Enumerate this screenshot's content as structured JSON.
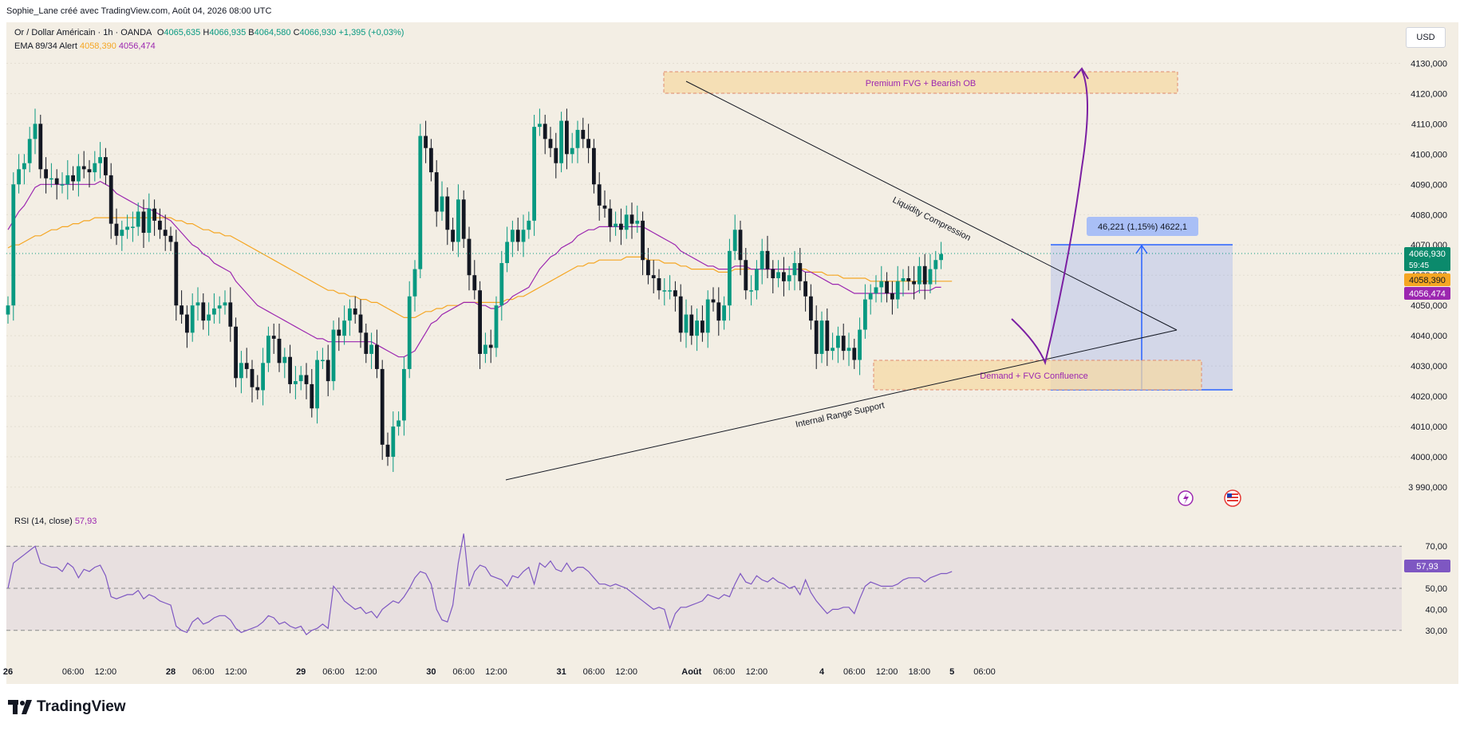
{
  "header": {
    "credit": "Sophie_Lane créé avec TradingView.com, Août 04, 2026 08:00 UTC"
  },
  "legend": {
    "symbol": "Or / Dollar Américain · 1h · OANDA",
    "open_label": "O",
    "open": "4065,635",
    "high_label": "H",
    "high": "4066,935",
    "low_label": "B",
    "low": "4064,580",
    "close_label": "C",
    "close": "4066,930",
    "change": "+1,395 (+0,03%)",
    "ema_label": "EMA 89/34 Alert",
    "ema89": "4058,390",
    "ema34": "4056,474",
    "rsi_label": "RSI (14, close)",
    "rsi_value": "57,93"
  },
  "currency": "USD",
  "price_badges": {
    "last": "4066,930",
    "countdown": "59:45",
    "ema89": "4058,390",
    "ema34": "4056,474",
    "rsi": "57,93"
  },
  "annotations": {
    "premium": "Premium FVG + Bearish OB",
    "demand": "Demand + FVG Confluence",
    "liquidity": "Liquidity Compression",
    "support": "Internal Range Support",
    "measure": "46,221 (1,15%) 4622,1"
  },
  "footer": {
    "logo_text": "TradingView"
  },
  "colors": {
    "background": "#f3eee4",
    "up": "#089981",
    "down": "#131722",
    "ema89": "#f5a623",
    "ema34": "#9c27b0",
    "rsi_line": "#7e57c2",
    "measure": "#2962ff",
    "zone": "#f6d9a5",
    "annotation_purple": "#7b1fa2"
  },
  "chart_data": [
    {
      "type": "candlestick",
      "title": "Or / Dollar Américain · 1h · OANDA",
      "ylim": [
        3985,
        4133
      ],
      "y_ticks": [
        {
          "v": 4130,
          "label": "4130,000"
        },
        {
          "v": 4120,
          "label": "4120,000"
        },
        {
          "v": 4110,
          "label": "4110,000"
        },
        {
          "v": 4100,
          "label": "4100,000"
        },
        {
          "v": 4090,
          "label": "4090,000"
        },
        {
          "v": 4080,
          "label": "4080,000"
        },
        {
          "v": 4070,
          "label": "4070,000"
        },
        {
          "v": 4060,
          "label": "4060,000"
        },
        {
          "v": 4050,
          "label": "4050,000"
        },
        {
          "v": 4040,
          "label": "4040,000"
        },
        {
          "v": 4030,
          "label": "4030,000"
        },
        {
          "v": 4020,
          "label": "4020,000"
        },
        {
          "v": 4010,
          "label": "4010,000"
        },
        {
          "v": 4000,
          "label": "4000,000"
        },
        {
          "v": 3990,
          "label": "3 990,000"
        }
      ],
      "x_ticks": [
        {
          "i": 0,
          "label": "26"
        },
        {
          "i": 12,
          "label": "06:00"
        },
        {
          "i": 18,
          "label": "12:00"
        },
        {
          "i": 30,
          "label": "28"
        },
        {
          "i": 36,
          "label": "06:00"
        },
        {
          "i": 42,
          "label": "12:00"
        },
        {
          "i": 54,
          "label": "29"
        },
        {
          "i": 60,
          "label": "06:00"
        },
        {
          "i": 66,
          "label": "12:00"
        },
        {
          "i": 78,
          "label": "30"
        },
        {
          "i": 84,
          "label": "06:00"
        },
        {
          "i": 90,
          "label": "12:00"
        },
        {
          "i": 102,
          "label": "31"
        },
        {
          "i": 108,
          "label": "06:00"
        },
        {
          "i": 114,
          "label": "12:00"
        },
        {
          "i": 126,
          "label": "Août"
        },
        {
          "i": 132,
          "label": "06:00"
        },
        {
          "i": 138,
          "label": "12:00"
        },
        {
          "i": 150,
          "label": "4"
        },
        {
          "i": 156,
          "label": "06:00"
        },
        {
          "i": 162,
          "label": "12:00"
        },
        {
          "i": 168,
          "label": "18:00"
        },
        {
          "i": 174,
          "label": "5"
        },
        {
          "i": 180,
          "label": "06:00"
        }
      ],
      "close": [
        4050,
        4090,
        4095,
        4097,
        4105,
        4110,
        4095,
        4092,
        4092,
        4090,
        4090,
        4093,
        4091,
        4096,
        4095,
        4094,
        4097,
        4099,
        4093,
        4077,
        4073,
        4075,
        4076,
        4076,
        4081,
        4074,
        4082,
        4078,
        4075,
        4073,
        4071,
        4050,
        4047,
        4041,
        4050,
        4051,
        4045,
        4047,
        4049,
        4050,
        4051,
        4043,
        4026,
        4031,
        4029,
        4023,
        4022,
        4031,
        4040,
        4039,
        4031,
        4033,
        4024,
        4025,
        4027,
        4024,
        4016,
        4032,
        4032,
        4025,
        4042,
        4040,
        4045,
        4049,
        4047,
        4041,
        4034,
        4037,
        4029,
        4004,
        4000,
        4010,
        4012,
        4029,
        4053,
        4062,
        4106,
        4102,
        4094,
        4081,
        4086,
        4075,
        4071,
        4085,
        4072,
        4060,
        4055,
        4034,
        4037,
        4036,
        4050,
        4064,
        4071,
        4075,
        4071,
        4075,
        4078,
        4109,
        4110,
        4105,
        4102,
        4097,
        4111,
        4100,
        4102,
        4108,
        4105,
        4102,
        4090,
        4083,
        4082,
        4076,
        4077,
        4075,
        4080,
        4077,
        4078,
        4065,
        4060,
        4059,
        4055,
        4055,
        4055,
        4053,
        4041,
        4047,
        4040,
        4045,
        4041,
        4052,
        4051,
        4045,
        4050,
        4068,
        4075,
        4065,
        4055,
        4055,
        4062,
        4068,
        4062,
        4059,
        4061,
        4058,
        4060,
        4064,
        4058,
        4053,
        4045,
        4034,
        4045,
        4035,
        4036,
        4040,
        4035,
        4036,
        4032,
        4042,
        4052,
        4054,
        4056,
        4058,
        4054,
        4052,
        4058,
        4059,
        4058,
        4057,
        4063,
        4057,
        4062,
        4065,
        4067
      ],
      "ema34": [
        4075,
        4078,
        4081,
        4083,
        4086,
        4089,
        4090,
        4090,
        4090,
        4090,
        4090,
        4090,
        4090,
        4090,
        4090,
        4090,
        4090,
        4091,
        4090,
        4089,
        4087,
        4086,
        4085,
        4084,
        4083,
        4082,
        4082,
        4081,
        4080,
        4079,
        4078,
        4076,
        4074,
        4072,
        4070,
        4069,
        4067,
        4066,
        4064,
        4063,
        4062,
        4061,
        4058,
        4056,
        4054,
        4052,
        4050,
        4049,
        4048,
        4047,
        4046,
        4045,
        4044,
        4043,
        4042,
        4041,
        4040,
        4039,
        4039,
        4038,
        4038,
        4038,
        4038,
        4038,
        4038,
        4038,
        4038,
        4038,
        4037,
        4036,
        4035,
        4034,
        4033,
        4033,
        4034,
        4035,
        4038,
        4041,
        4044,
        4045,
        4047,
        4048,
        4049,
        4050,
        4051,
        4051,
        4051,
        4050,
        4050,
        4049,
        4049,
        4050,
        4051,
        4053,
        4054,
        4055,
        4056,
        4059,
        4062,
        4064,
        4066,
        4067,
        4069,
        4070,
        4071,
        4073,
        4074,
        4075,
        4075,
        4076,
        4076,
        4076,
        4076,
        4076,
        4076,
        4076,
        4076,
        4076,
        4075,
        4074,
        4073,
        4072,
        4071,
        4070,
        4068,
        4067,
        4066,
        4065,
        4064,
        4063,
        4063,
        4062,
        4062,
        4062,
        4063,
        4063,
        4063,
        4062,
        4062,
        4062,
        4062,
        4062,
        4062,
        4062,
        4062,
        4062,
        4062,
        4061,
        4061,
        4060,
        4059,
        4058,
        4057,
        4057,
        4056,
        4055,
        4054,
        4054,
        4054,
        4054,
        4054,
        4054,
        4054,
        4054,
        4054,
        4054,
        4054,
        4054,
        4055,
        4055,
        4055,
        4056,
        4056
      ],
      "ema89": [
        4069,
        4070,
        4070,
        4071,
        4072,
        4073,
        4073,
        4074,
        4075,
        4075,
        4076,
        4076,
        4077,
        4077,
        4078,
        4078,
        4079,
        4079,
        4079,
        4079,
        4079,
        4079,
        4079,
        4079,
        4079,
        4079,
        4079,
        4079,
        4079,
        4079,
        4079,
        4078,
        4078,
        4077,
        4077,
        4076,
        4075,
        4075,
        4074,
        4074,
        4073,
        4073,
        4072,
        4071,
        4070,
        4069,
        4068,
        4067,
        4066,
        4065,
        4064,
        4063,
        4062,
        4061,
        4060,
        4059,
        4058,
        4057,
        4056,
        4055,
        4055,
        4054,
        4054,
        4053,
        4053,
        4052,
        4052,
        4051,
        4051,
        4050,
        4049,
        4048,
        4047,
        4046,
        4046,
        4046,
        4047,
        4048,
        4048,
        4049,
        4049,
        4050,
        4050,
        4050,
        4051,
        4051,
        4051,
        4051,
        4051,
        4051,
        4051,
        4051,
        4052,
        4052,
        4053,
        4053,
        4054,
        4055,
        4056,
        4057,
        4058,
        4059,
        4060,
        4061,
        4062,
        4063,
        4063,
        4064,
        4064,
        4065,
        4065,
        4065,
        4065,
        4065,
        4066,
        4066,
        4066,
        4066,
        4065,
        4065,
        4065,
        4064,
        4064,
        4064,
        4063,
        4063,
        4062,
        4062,
        4062,
        4062,
        4062,
        4061,
        4061,
        4061,
        4062,
        4062,
        4062,
        4062,
        4062,
        4062,
        4062,
        4062,
        4062,
        4062,
        4062,
        4062,
        4062,
        4062,
        4061,
        4061,
        4061,
        4060,
        4060,
        4060,
        4059,
        4059,
        4059,
        4059,
        4059,
        4058,
        4058,
        4058,
        4058,
        4058,
        4058,
        4058,
        4058,
        4058,
        4058,
        4058,
        4058,
        4058,
        4058,
        4058,
        4058
      ]
    },
    {
      "type": "line",
      "title": "RSI (14, close)",
      "ylim": [
        25,
        75
      ],
      "y_ticks": [
        {
          "v": 70,
          "label": "70,00"
        },
        {
          "v": 50,
          "label": "50,00"
        },
        {
          "v": 40,
          "label": "40,00"
        },
        {
          "v": 30,
          "label": "30,00"
        }
      ],
      "bands": [
        70,
        50,
        30
      ],
      "values": [
        50,
        62,
        64,
        66,
        68,
        70,
        62,
        61,
        60,
        60,
        58,
        62,
        60,
        55,
        59,
        58,
        60,
        61,
        56,
        46,
        45,
        46,
        47,
        47,
        49,
        45,
        47,
        46,
        44,
        43,
        42,
        32,
        30,
        29,
        34,
        36,
        33,
        34,
        36,
        37,
        37,
        35,
        31,
        29,
        30,
        31,
        32,
        34,
        37,
        36,
        33,
        34,
        32,
        31,
        32,
        28,
        30,
        31,
        33,
        31,
        51,
        48,
        44,
        42,
        40,
        41,
        38,
        39,
        36,
        40,
        42,
        44,
        43,
        46,
        50,
        55,
        58,
        57,
        52,
        40,
        35,
        34,
        42,
        62,
        76,
        51,
        58,
        61,
        60,
        56,
        55,
        54,
        51,
        56,
        55,
        58,
        60,
        52,
        62,
        60,
        63,
        59,
        58,
        62,
        58,
        60,
        60,
        58,
        55,
        52,
        52,
        51,
        52,
        51,
        50,
        48,
        46,
        44,
        42,
        40,
        41,
        40,
        31,
        38,
        41,
        41,
        42,
        43,
        44,
        47,
        46,
        45,
        47,
        46,
        52,
        57,
        53,
        52,
        56,
        54,
        53,
        55,
        53,
        52,
        50,
        51,
        47,
        54,
        48,
        44,
        41,
        38,
        40,
        40,
        41,
        41,
        38,
        45,
        51,
        53,
        52,
        51,
        51,
        51,
        52,
        54,
        55,
        55,
        55,
        53,
        55,
        56,
        57,
        57,
        58
      ]
    }
  ]
}
